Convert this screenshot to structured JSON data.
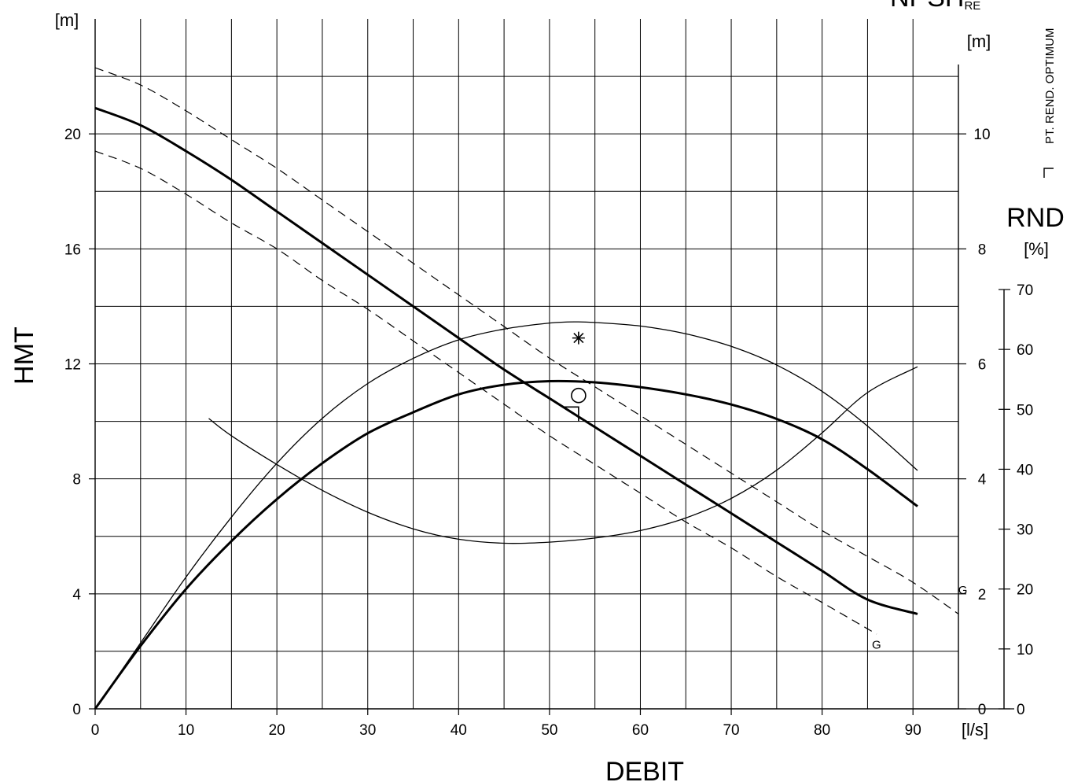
{
  "chart_data": {
    "type": "line",
    "title": "",
    "xlabel": "DEBIT",
    "x_unit": "[l/s]",
    "xlim": [
      0,
      95
    ],
    "x_ticks": [
      0,
      10,
      20,
      30,
      40,
      50,
      60,
      70,
      80,
      90
    ],
    "grid": true,
    "left_axis": {
      "label": "HMT",
      "unit": "[m]",
      "ylim": [
        0,
        24
      ],
      "ticks": [
        0,
        4,
        8,
        12,
        16,
        20
      ]
    },
    "npsh_axis": {
      "label": "NPSH",
      "subscript": "RE",
      "unit": "[m]",
      "ylim": [
        0,
        12
      ],
      "ticks": [
        0,
        2,
        4,
        6,
        8,
        10
      ]
    },
    "rnd_axis": {
      "label": "RND",
      "unit": "[%]",
      "ylim": [
        0,
        70
      ],
      "ticks": [
        0,
        10,
        20,
        30,
        40,
        50,
        60,
        70
      ]
    },
    "legend_note": "PT. REND. OPTIMUM",
    "series": [
      {
        "axis": "hmt",
        "style": "bold",
        "x": [
          0,
          5,
          10,
          15,
          20,
          25,
          30,
          35,
          40,
          45,
          50,
          55,
          60,
          65,
          70,
          75,
          80,
          85,
          90.5
        ],
        "y": [
          20.9,
          20.3,
          19.4,
          18.4,
          17.3,
          16.2,
          15.1,
          14.0,
          12.9,
          11.8,
          10.8,
          9.8,
          8.8,
          7.8,
          6.8,
          5.8,
          4.8,
          3.8,
          3.3
        ]
      },
      {
        "axis": "hmt",
        "style": "dashed",
        "x": [
          0,
          5,
          10,
          15,
          20,
          25,
          30,
          35,
          40,
          45,
          50,
          55,
          60,
          65,
          70,
          75,
          80,
          85,
          90,
          95
        ],
        "y": [
          22.3,
          21.7,
          20.8,
          19.8,
          18.8,
          17.7,
          16.6,
          15.5,
          14.4,
          13.3,
          12.2,
          11.2,
          10.2,
          9.2,
          8.2,
          7.2,
          6.2,
          5.3,
          4.4,
          3.3
        ]
      },
      {
        "axis": "hmt",
        "style": "dashed",
        "x": [
          0,
          5,
          10,
          15,
          20,
          25,
          30,
          35,
          40,
          45,
          50,
          55,
          60,
          65,
          70,
          75,
          80,
          86
        ],
        "y": [
          19.4,
          18.8,
          17.9,
          16.9,
          16.0,
          14.9,
          13.9,
          12.8,
          11.7,
          10.6,
          9.5,
          8.5,
          7.5,
          6.5,
          5.6,
          4.6,
          3.7,
          2.6
        ]
      },
      {
        "axis": "rnd",
        "style": "bold",
        "x": [
          0,
          5,
          10,
          15,
          20,
          25,
          30,
          35,
          40,
          45,
          50,
          55,
          60,
          65,
          70,
          75,
          80,
          85,
          90.5
        ],
        "y": [
          0,
          10.5,
          20,
          28,
          35,
          41,
          46,
          49.5,
          52.5,
          54.1,
          54.7,
          54.5,
          53.7,
          52.5,
          50.8,
          48.4,
          45,
          40,
          33.8
        ]
      },
      {
        "axis": "rnd",
        "style": "thin",
        "x": [
          0,
          5,
          10,
          15,
          20,
          25,
          30,
          35,
          40,
          45,
          50,
          53,
          55,
          60,
          65,
          70,
          75,
          80,
          85,
          90.5
        ],
        "y": [
          0,
          11,
          22,
          32,
          41,
          48.5,
          54.3,
          58.5,
          61.6,
          63.4,
          64.4,
          64.6,
          64.5,
          63.9,
          62.6,
          60.5,
          57.4,
          53.0,
          47.2,
          39.8
        ]
      },
      {
        "axis": "npsh",
        "style": "thin",
        "x": [
          12.5,
          15,
          20,
          25,
          30,
          35,
          40,
          45,
          50,
          55,
          60,
          65,
          70,
          75,
          80,
          85,
          90.5
        ],
        "y": [
          5.05,
          4.75,
          4.25,
          3.8,
          3.42,
          3.13,
          2.95,
          2.88,
          2.9,
          2.97,
          3.1,
          3.32,
          3.66,
          4.15,
          4.8,
          5.5,
          5.95
        ]
      }
    ],
    "annotations": [
      {
        "text": "G",
        "x": 86,
        "y": 2.1,
        "axis": "hmt"
      },
      {
        "text": "G",
        "x": 95.5,
        "y": 4.0,
        "axis": "hmt"
      }
    ],
    "markers": [
      {
        "symbol": "asterisk",
        "x": 53.2,
        "y": 12.9,
        "axis": "hmt"
      },
      {
        "symbol": "circle",
        "x": 53.2,
        "y": 10.9,
        "axis": "hmt"
      },
      {
        "symbol": "bracket",
        "x": 53.2,
        "y": 10.5,
        "axis": "hmt"
      }
    ]
  }
}
